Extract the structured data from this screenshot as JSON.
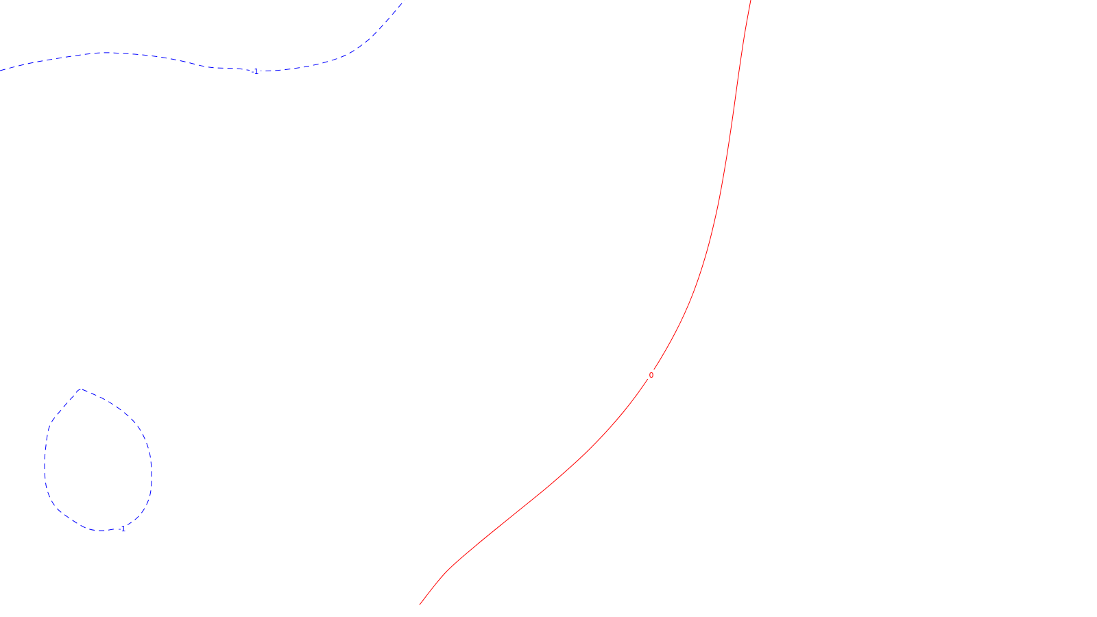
{
  "chart_data": {
    "type": "contour",
    "title": "",
    "xlabel": "",
    "ylabel": "",
    "axes_visible": false,
    "grid": false,
    "legend": "none",
    "series": [
      {
        "level": -1,
        "label": "-1",
        "color": "#0000ff",
        "style": "dashed",
        "segments": [
          {
            "id": "top-curve",
            "closed": false,
            "points": [
              [
                0,
                103
              ],
              [
                50,
                91
              ],
              [
                135,
                78
              ],
              [
                180,
                78
              ],
              [
                225,
                82
              ],
              [
                265,
                89
              ],
              [
                305,
                98
              ],
              [
                345,
                100
              ],
              [
                370,
                103
              ],
              [
                400,
                103
              ],
              [
                435,
                99
              ],
              [
                470,
                92
              ],
              [
                505,
                80
              ],
              [
                535,
                60
              ],
              [
                560,
                35
              ],
              [
                580,
                12
              ],
              [
                590,
                0
              ]
            ],
            "label_at": [
              372,
              104
            ]
          },
          {
            "id": "bottom-loop",
            "closed": true,
            "points": [
              [
                120,
                568
              ],
              [
                155,
                584
              ],
              [
                185,
                605
              ],
              [
                205,
                628
              ],
              [
                218,
                660
              ],
              [
                221,
                695
              ],
              [
                218,
                725
              ],
              [
                205,
                750
              ],
              [
                185,
                766
              ],
              [
                165,
                772
              ],
              [
                145,
                774
              ],
              [
                125,
                770
              ],
              [
                100,
                755
              ],
              [
                80,
                738
              ],
              [
                68,
                712
              ],
              [
                65,
                680
              ],
              [
                67,
                650
              ],
              [
                73,
                620
              ],
              [
                90,
                597
              ],
              [
                107,
                578
              ]
            ],
            "label_at": [
              178,
              771
            ]
          }
        ]
      },
      {
        "level": 0,
        "label": "0",
        "color": "#ff0000",
        "style": "solid",
        "segments": [
          {
            "id": "zero-line",
            "closed": false,
            "points": [
              [
                1095,
                0
              ],
              [
                1086,
                50
              ],
              [
                1077,
                110
              ],
              [
                1068,
                175
              ],
              [
                1058,
                240
              ],
              [
                1046,
                305
              ],
              [
                1030,
                370
              ],
              [
                1010,
                430
              ],
              [
                985,
                485
              ],
              [
                950,
                545
              ],
              [
                910,
                600
              ],
              [
                860,
                655
              ],
              [
                805,
                705
              ],
              [
                750,
                750
              ],
              [
                695,
                795
              ],
              [
                650,
                835
              ],
              [
                612,
                882
              ]
            ],
            "label_at": [
              950,
              547
            ]
          }
        ]
      }
    ]
  }
}
